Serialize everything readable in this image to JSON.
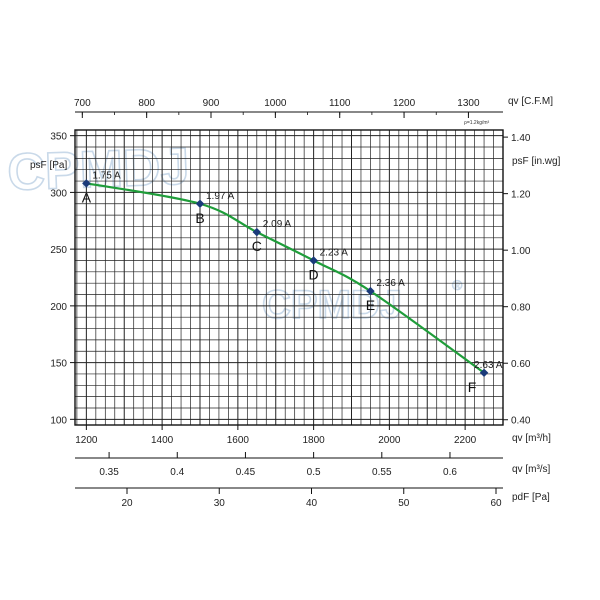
{
  "watermark": {
    "text": "CPMDJ",
    "mark": "®"
  },
  "chart_data": {
    "type": "line",
    "grid": true,
    "density_note": "ρ=1.2kg/m³",
    "series": [
      {
        "color": "#1f9d3a",
        "x": [
          1200,
          1500,
          1650,
          1800,
          1950,
          2250
        ],
        "y": [
          308,
          290,
          265,
          240,
          213,
          141
        ]
      }
    ],
    "points": [
      {
        "label": "A",
        "current": "1.75 A",
        "qv_m3h": 1200,
        "pressure_pa": 308
      },
      {
        "label": "B",
        "current": "1.97 A",
        "qv_m3h": 1500,
        "pressure_pa": 290
      },
      {
        "label": "C",
        "current": "2.09 A",
        "qv_m3h": 1650,
        "pressure_pa": 265
      },
      {
        "label": "D",
        "current": "2.23 A",
        "qv_m3h": 1800,
        "pressure_pa": 240
      },
      {
        "label": "E",
        "current": "2.36 A",
        "qv_m3h": 1950,
        "pressure_pa": 213
      },
      {
        "label": "F",
        "current": "2.63 A",
        "qv_m3h": 2250,
        "pressure_pa": 141
      }
    ],
    "x_axis_primary": {
      "label": "qv [m³/h]",
      "xlim": [
        1170,
        2300
      ],
      "ticks": [
        "1200",
        "1400",
        "1600",
        "1800",
        "2000",
        "2200"
      ]
    },
    "x_axis_top": {
      "label": "qv [C.F.M]",
      "ticks": [
        "700",
        "800",
        "900",
        "1000",
        "1100",
        "1200",
        "1300"
      ]
    },
    "x_axis_m3s": {
      "label": "qv [m³/s]",
      "ticks": [
        "0.35",
        "0.4",
        "0.45",
        "0.5",
        "0.55",
        "0.6"
      ]
    },
    "x_axis_pdf": {
      "label": "pdF [Pa]",
      "ticks": [
        "20",
        "30",
        "40",
        "50",
        "60"
      ]
    },
    "y_axis_left": {
      "label": "psF [Pa]",
      "ylim": [
        95,
        355
      ],
      "ticks": [
        "100",
        "150",
        "200",
        "250",
        "300",
        "350"
      ]
    },
    "y_axis_right": {
      "label": "psF [in.wg]",
      "ticks": [
        "0.40",
        "0.60",
        "0.80",
        "1.00",
        "1.20",
        "1.40"
      ]
    }
  }
}
